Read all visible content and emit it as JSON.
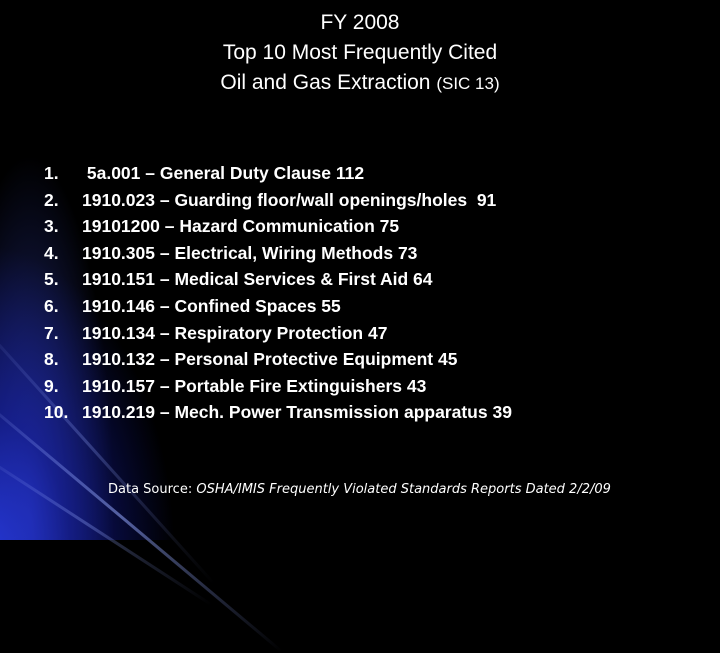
{
  "title": {
    "line1": "FY 2008",
    "line2": "Top 10 Most Frequently Cited",
    "line3_main": "Oil and Gas Extraction",
    "line3_small": "(SIC 13)"
  },
  "items": [
    {
      "num": "1.",
      "text": " 5a.001 – General Duty Clause 112"
    },
    {
      "num": "2.",
      "text": "1910.023 – Guarding floor/wall openings/holes  91"
    },
    {
      "num": "3.",
      "text": "19101200 – Hazard Communication 75"
    },
    {
      "num": "4.",
      "text": "1910.305 – Electrical, Wiring Methods 73"
    },
    {
      "num": "5.",
      "text": "1910.151 – Medical Services & First Aid 64"
    },
    {
      "num": "6.",
      "text": "1910.146 – Confined Spaces 55"
    },
    {
      "num": "7.",
      "text": "1910.134 – Respiratory Protection 47"
    },
    {
      "num": "8.",
      "text": "1910.132 – Personal Protective Equipment 45"
    },
    {
      "num": "9.",
      "text": "1910.157 – Portable Fire Extinguishers 43"
    },
    {
      "num": "10.",
      "text": "1910.219 – Mech. Power Transmission apparatus 39"
    }
  ],
  "source": {
    "label": "Data Source:",
    "text": "OSHA/IMIS Frequently Violated Standards Reports Dated 2/2/09"
  },
  "colors": {
    "background": "#000000",
    "text": "#ffffff",
    "accent_glow": "#2a3ce6"
  }
}
